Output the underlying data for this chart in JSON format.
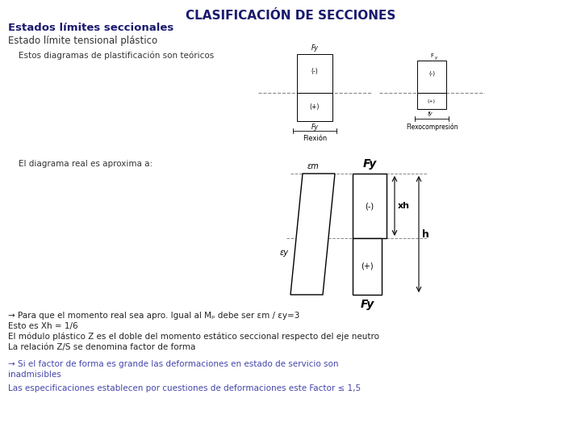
{
  "title": "CLASIFICACIÓN DE SECCIONES",
  "title_color": "#1a1a6e",
  "title_fontsize": 11,
  "subtitle1": "Estados límites seccionales",
  "subtitle1_color": "#1a1a6e",
  "subtitle1_fontsize": 9.5,
  "subtitle2": "Estado límite tensional plástico",
  "subtitle2_color": "#333333",
  "subtitle2_fontsize": 8.5,
  "text1": "    Estos diagramas de plastificación son teóricos",
  "text1_color": "#333333",
  "text1_fontsize": 7.5,
  "text2": "    El diagrama real es aproxima a:",
  "text2_color": "#333333",
  "text2_fontsize": 7.5,
  "arrow_text1": "→ Para que el momento real sea apro. Igual al Mₚ debe ser εm / εy=3",
  "arrow_text2": "Esto es Xh = 1/6",
  "arrow_text3": "El módulo plástico Z es el doble del momento estático seccional respecto del eje neutro",
  "arrow_text4": "La relación Z/S se denomina factor de forma",
  "blue_text1": "→ Si el factor de forma es grande las deformaciones en estado de servicio son\ninadmisibles",
  "blue_text2": "Las especificaciones establecen por cuestiones de deformaciones este Factor ≤ 1,5",
  "blue_color": "#4444aa",
  "body_fontsize": 7.5,
  "bg_color": "#ffffff"
}
